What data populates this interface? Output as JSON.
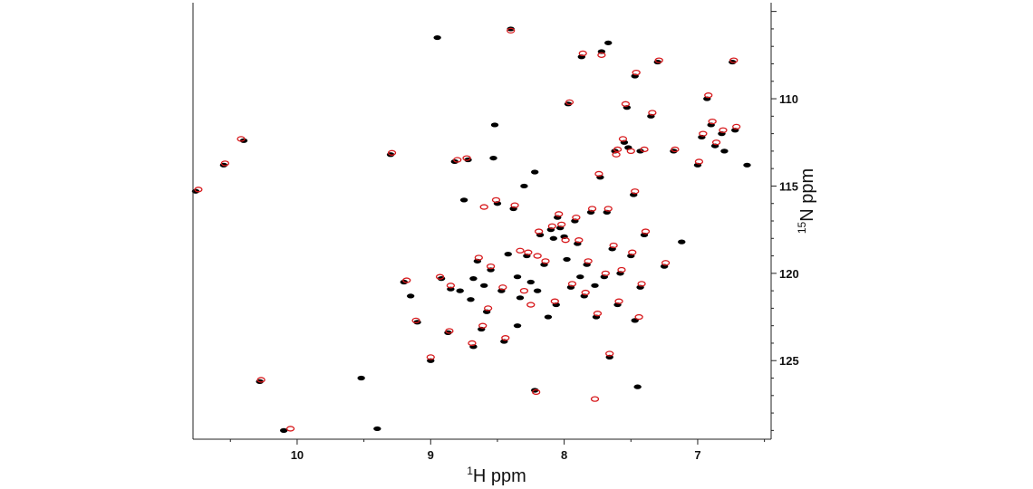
{
  "chart_data": {
    "type": "scatter",
    "title": "",
    "xlabel": {
      "sup": "1",
      "main": "H ppm"
    },
    "ylabel": {
      "sup": "15",
      "main": "N ppm"
    },
    "xlim": [
      10.78,
      6.45
    ],
    "ylim": [
      104.5,
      129.5
    ],
    "x_reversed": true,
    "y_inverted": true,
    "x_ticks": [
      10,
      9,
      8,
      7
    ],
    "y_ticks": [
      110,
      115,
      120,
      125
    ],
    "legend": "none",
    "grid": false,
    "colors": {
      "series_a": "#000000",
      "series_b": "#d7191c"
    },
    "series": [
      {
        "color": "#000000",
        "points": [
          [
            10.76,
            115.3
          ],
          [
            10.55,
            113.8
          ],
          [
            10.4,
            112.4
          ],
          [
            10.28,
            126.2
          ],
          [
            10.1,
            129.0
          ],
          [
            9.52,
            126.0
          ],
          [
            9.4,
            128.9
          ],
          [
            9.3,
            113.2
          ],
          [
            9.2,
            120.5
          ],
          [
            9.15,
            121.3
          ],
          [
            9.1,
            122.8
          ],
          [
            9.0,
            125.0
          ],
          [
            8.95,
            106.5
          ],
          [
            8.92,
            120.3
          ],
          [
            8.87,
            123.4
          ],
          [
            8.85,
            120.9
          ],
          [
            8.82,
            113.6
          ],
          [
            8.78,
            121.0
          ],
          [
            8.75,
            115.8
          ],
          [
            8.72,
            113.5
          ],
          [
            8.7,
            121.5
          ],
          [
            8.68,
            124.2
          ],
          [
            8.65,
            119.3
          ],
          [
            8.62,
            123.2
          ],
          [
            8.6,
            120.7
          ],
          [
            8.58,
            122.2
          ],
          [
            8.55,
            119.8
          ],
          [
            8.53,
            113.4
          ],
          [
            8.52,
            111.5
          ],
          [
            8.5,
            116.0
          ],
          [
            8.47,
            121.0
          ],
          [
            8.45,
            123.9
          ],
          [
            8.42,
            118.9
          ],
          [
            8.4,
            106.0
          ],
          [
            8.38,
            116.3
          ],
          [
            8.35,
            120.2
          ],
          [
            8.33,
            121.4
          ],
          [
            8.3,
            115.0
          ],
          [
            8.28,
            119.0
          ],
          [
            8.25,
            120.5
          ],
          [
            8.22,
            126.7
          ],
          [
            8.22,
            114.2
          ],
          [
            8.2,
            121.0
          ],
          [
            8.18,
            117.8
          ],
          [
            8.15,
            119.5
          ],
          [
            8.12,
            122.5
          ],
          [
            8.1,
            117.5
          ],
          [
            8.08,
            118.0
          ],
          [
            8.06,
            121.8
          ],
          [
            8.05,
            116.8
          ],
          [
            8.03,
            117.4
          ],
          [
            8.0,
            117.9
          ],
          [
            7.98,
            119.2
          ],
          [
            7.97,
            110.3
          ],
          [
            7.95,
            120.8
          ],
          [
            7.92,
            117.0
          ],
          [
            7.9,
            118.3
          ],
          [
            7.88,
            120.2
          ],
          [
            7.87,
            107.6
          ],
          [
            7.85,
            121.3
          ],
          [
            7.83,
            119.5
          ],
          [
            7.8,
            116.5
          ],
          [
            7.77,
            120.7
          ],
          [
            7.76,
            122.5
          ],
          [
            7.73,
            114.5
          ],
          [
            7.72,
            107.3
          ],
          [
            7.7,
            120.2
          ],
          [
            7.68,
            116.5
          ],
          [
            7.67,
            106.8
          ],
          [
            7.66,
            124.8
          ],
          [
            7.64,
            118.6
          ],
          [
            7.62,
            113.0
          ],
          [
            7.6,
            121.8
          ],
          [
            7.58,
            120.0
          ],
          [
            7.55,
            112.5
          ],
          [
            7.53,
            110.5
          ],
          [
            7.5,
            119.0
          ],
          [
            7.48,
            115.5
          ],
          [
            7.47,
            108.7
          ],
          [
            7.47,
            122.7
          ],
          [
            7.45,
            126.5
          ],
          [
            7.43,
            120.8
          ],
          [
            7.4,
            117.8
          ],
          [
            7.35,
            111.0
          ],
          [
            7.3,
            107.9
          ],
          [
            7.25,
            119.6
          ],
          [
            7.18,
            113.0
          ],
          [
            7.12,
            118.2
          ],
          [
            7.0,
            113.8
          ],
          [
            6.97,
            112.2
          ],
          [
            6.93,
            110.0
          ],
          [
            6.9,
            111.5
          ],
          [
            6.87,
            112.7
          ],
          [
            6.82,
            112.0
          ],
          [
            6.8,
            113.0
          ],
          [
            6.74,
            107.9
          ],
          [
            6.72,
            111.8
          ],
          [
            6.63,
            113.8
          ],
          [
            7.52,
            112.8
          ],
          [
            7.43,
            113.0
          ],
          [
            8.35,
            123.0
          ],
          [
            8.68,
            120.3
          ]
        ]
      },
      {
        "color": "#d7191c",
        "points": [
          [
            10.74,
            115.2
          ],
          [
            10.54,
            113.7
          ],
          [
            10.42,
            112.3
          ],
          [
            10.27,
            126.1
          ],
          [
            10.05,
            128.9
          ],
          [
            9.29,
            113.1
          ],
          [
            9.18,
            120.4
          ],
          [
            9.11,
            122.7
          ],
          [
            9.0,
            124.8
          ],
          [
            8.93,
            120.2
          ],
          [
            8.86,
            123.3
          ],
          [
            8.8,
            113.5
          ],
          [
            8.73,
            113.4
          ],
          [
            8.69,
            124.0
          ],
          [
            8.64,
            119.1
          ],
          [
            8.61,
            123.0
          ],
          [
            8.57,
            122.0
          ],
          [
            8.55,
            119.6
          ],
          [
            8.51,
            115.8
          ],
          [
            8.46,
            120.8
          ],
          [
            8.44,
            123.7
          ],
          [
            8.4,
            106.1
          ],
          [
            8.37,
            116.1
          ],
          [
            8.33,
            118.7
          ],
          [
            8.27,
            118.8
          ],
          [
            8.25,
            121.8
          ],
          [
            8.21,
            126.8
          ],
          [
            8.19,
            117.6
          ],
          [
            8.14,
            119.3
          ],
          [
            8.09,
            117.3
          ],
          [
            8.07,
            121.6
          ],
          [
            8.04,
            116.6
          ],
          [
            8.02,
            117.2
          ],
          [
            7.99,
            118.1
          ],
          [
            7.96,
            110.2
          ],
          [
            7.94,
            120.6
          ],
          [
            7.91,
            116.8
          ],
          [
            7.89,
            118.1
          ],
          [
            7.86,
            107.4
          ],
          [
            7.84,
            121.1
          ],
          [
            7.82,
            119.3
          ],
          [
            7.79,
            116.3
          ],
          [
            7.77,
            127.2
          ],
          [
            7.75,
            122.3
          ],
          [
            7.74,
            114.3
          ],
          [
            7.72,
            107.5
          ],
          [
            7.69,
            120.0
          ],
          [
            7.67,
            116.3
          ],
          [
            7.66,
            124.6
          ],
          [
            7.63,
            118.4
          ],
          [
            7.61,
            113.2
          ],
          [
            7.59,
            121.6
          ],
          [
            7.57,
            119.8
          ],
          [
            7.56,
            112.3
          ],
          [
            7.54,
            110.3
          ],
          [
            7.49,
            118.8
          ],
          [
            7.47,
            115.3
          ],
          [
            7.46,
            108.5
          ],
          [
            7.44,
            122.5
          ],
          [
            7.42,
            120.6
          ],
          [
            7.39,
            117.6
          ],
          [
            7.34,
            110.8
          ],
          [
            7.29,
            107.8
          ],
          [
            7.24,
            119.4
          ],
          [
            7.17,
            112.9
          ],
          [
            6.99,
            113.6
          ],
          [
            6.96,
            112.0
          ],
          [
            6.92,
            109.8
          ],
          [
            6.89,
            111.3
          ],
          [
            6.86,
            112.5
          ],
          [
            6.81,
            111.8
          ],
          [
            6.73,
            107.8
          ],
          [
            6.71,
            111.6
          ],
          [
            7.6,
            112.9
          ],
          [
            7.5,
            113.0
          ],
          [
            7.4,
            112.9
          ],
          [
            8.2,
            119.0
          ],
          [
            8.6,
            116.2
          ],
          [
            8.3,
            121.0
          ],
          [
            8.85,
            120.7
          ]
        ]
      }
    ]
  }
}
